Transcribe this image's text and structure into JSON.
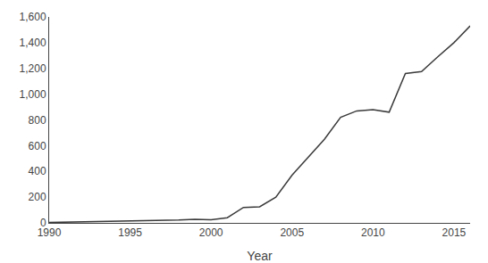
{
  "chart_data": {
    "type": "line",
    "x": [
      1990,
      1991,
      1992,
      1993,
      1994,
      1995,
      1996,
      1997,
      1998,
      1999,
      2000,
      2001,
      2002,
      2003,
      2004,
      2005,
      2006,
      2007,
      2008,
      2009,
      2010,
      2011,
      2012,
      2013,
      2014,
      2015,
      2016
    ],
    "values": [
      3,
      5,
      7,
      8,
      10,
      12,
      15,
      18,
      22,
      28,
      25,
      40,
      120,
      125,
      200,
      370,
      510,
      650,
      820,
      870,
      880,
      860,
      1160,
      1175,
      1290,
      1400,
      1530
    ],
    "color": "#3a3a3a",
    "xlabel": "Year",
    "xlim": [
      1990,
      2016
    ],
    "ylim": [
      0,
      1600
    ],
    "xticks": [
      1990,
      1995,
      2000,
      2005,
      2010,
      2015
    ],
    "yticks": [
      0,
      200,
      400,
      600,
      800,
      {
        "value": 1000,
        "label": "1,000"
      },
      {
        "value": 1200,
        "label": "1,200"
      },
      {
        "value": 1400,
        "label": "1,400"
      },
      {
        "value": 1600,
        "label": "1,600"
      }
    ],
    "grid": false
  }
}
